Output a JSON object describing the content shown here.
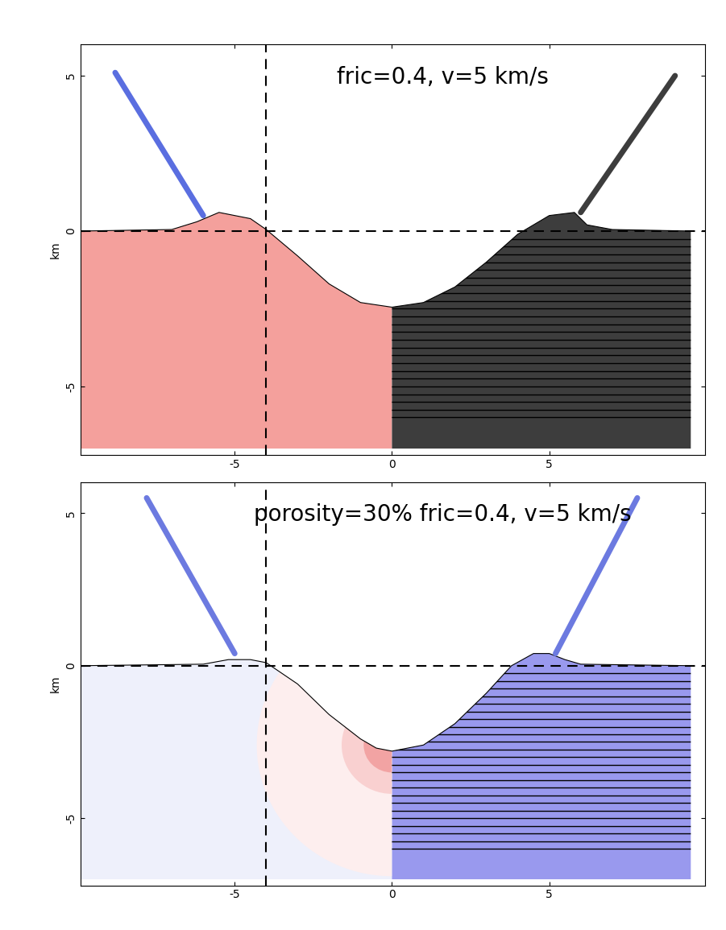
{
  "chart_data": [
    {
      "type": "profile",
      "title": "fric=0.4, v=5 km/s",
      "y_label": "km",
      "xlim": [
        -9.9,
        9.95
      ],
      "ylim": [
        -7.2,
        6
      ],
      "xticks": [
        -5,
        0,
        5
      ],
      "yticks": [
        -5,
        0,
        5
      ],
      "surface": {
        "x": [
          -9.9,
          -7,
          -6.2,
          -5.5,
          -4.5,
          -4,
          -3,
          -2,
          -1,
          0,
          1,
          2,
          3,
          4,
          5,
          5.8,
          6.2,
          7,
          9.5
        ],
        "y": [
          0,
          0.05,
          0.3,
          0.6,
          0.4,
          0.05,
          -0.8,
          -1.7,
          -2.3,
          -2.45,
          -2.3,
          -1.8,
          -1.0,
          -0.1,
          0.5,
          0.6,
          0.2,
          0.05,
          0
        ]
      },
      "floor": -7,
      "split": 0,
      "colors": [
        "#f4a09c",
        "#3d3d3d"
      ],
      "ejecta": [
        {
          "x": [
            -6.0,
            -8.8
          ],
          "y": [
            0.5,
            5.1
          ],
          "color": "#5a6ee0"
        },
        {
          "x": [
            6.0,
            9.0
          ],
          "y": [
            0.6,
            5.0
          ],
          "color": "#3d3d3d"
        }
      ],
      "layers": [
        -6.0,
        -5.75,
        -5.5,
        -5.25,
        -5.0,
        -4.75,
        -4.5,
        -4.25,
        -4.0,
        -3.75,
        -3.5,
        -3.25,
        -3.0,
        -2.75,
        -2.5,
        -2.25,
        -2.0,
        -1.75,
        -1.5,
        -1.25,
        -1.0,
        -0.75,
        -0.5,
        -0.25
      ],
      "layer_x": [
        0,
        9.5
      ],
      "layer_color": "#000000",
      "dashed_lines": {
        "x": -4,
        "y": 0
      }
    },
    {
      "type": "profile",
      "title": "porosity=30% fric=0.4, v=5 km/s",
      "y_label": "km",
      "xlim": [
        -9.9,
        9.95
      ],
      "ylim": [
        -7.2,
        6
      ],
      "xticks": [
        -5,
        0,
        5
      ],
      "yticks": [
        -5,
        0,
        5
      ],
      "surface": {
        "x": [
          -9.9,
          -6,
          -5.2,
          -4.5,
          -4,
          -3,
          -2,
          -1,
          -0.5,
          0,
          1,
          2,
          3,
          3.8,
          4.5,
          5,
          5.5,
          6,
          9.5
        ],
        "y": [
          0,
          0.05,
          0.2,
          0.2,
          0.1,
          -0.6,
          -1.6,
          -2.4,
          -2.7,
          -2.8,
          -2.6,
          -1.9,
          -0.9,
          0,
          0.4,
          0.4,
          0.2,
          0.05,
          0
        ]
      },
      "floor": -7,
      "split": 0,
      "colors": [
        "#eef0fb",
        "#9999ee"
      ],
      "ejecta": [
        {
          "x": [
            -5.0,
            -7.8
          ],
          "y": [
            0.4,
            5.5
          ],
          "color": "#6c7ae0"
        },
        {
          "x": [
            5.2,
            7.8
          ],
          "y": [
            0.4,
            5.5
          ],
          "color": "#6c7ae0"
        }
      ],
      "layers": [
        -6.0,
        -5.75,
        -5.5,
        -5.25,
        -5.0,
        -4.75,
        -4.5,
        -4.25,
        -4.0,
        -3.75,
        -3.5,
        -3.25,
        -3.0,
        -2.75,
        -2.5,
        -2.25,
        -2.0,
        -1.75,
        -1.5,
        -1.25,
        -1.0,
        -0.75,
        -0.5,
        -0.25
      ],
      "layer_x": [
        0,
        9.5
      ],
      "layer_color": "#000000",
      "damage_zones": {
        "center": [
          0,
          -2.6
        ],
        "radii": [
          4.3,
          1.6,
          0.9
        ],
        "colors": [
          "#fdeeee",
          "#f9d0d0",
          "#f2a3a3"
        ]
      },
      "dashed_lines": {
        "x": -4,
        "y": 0
      }
    }
  ]
}
